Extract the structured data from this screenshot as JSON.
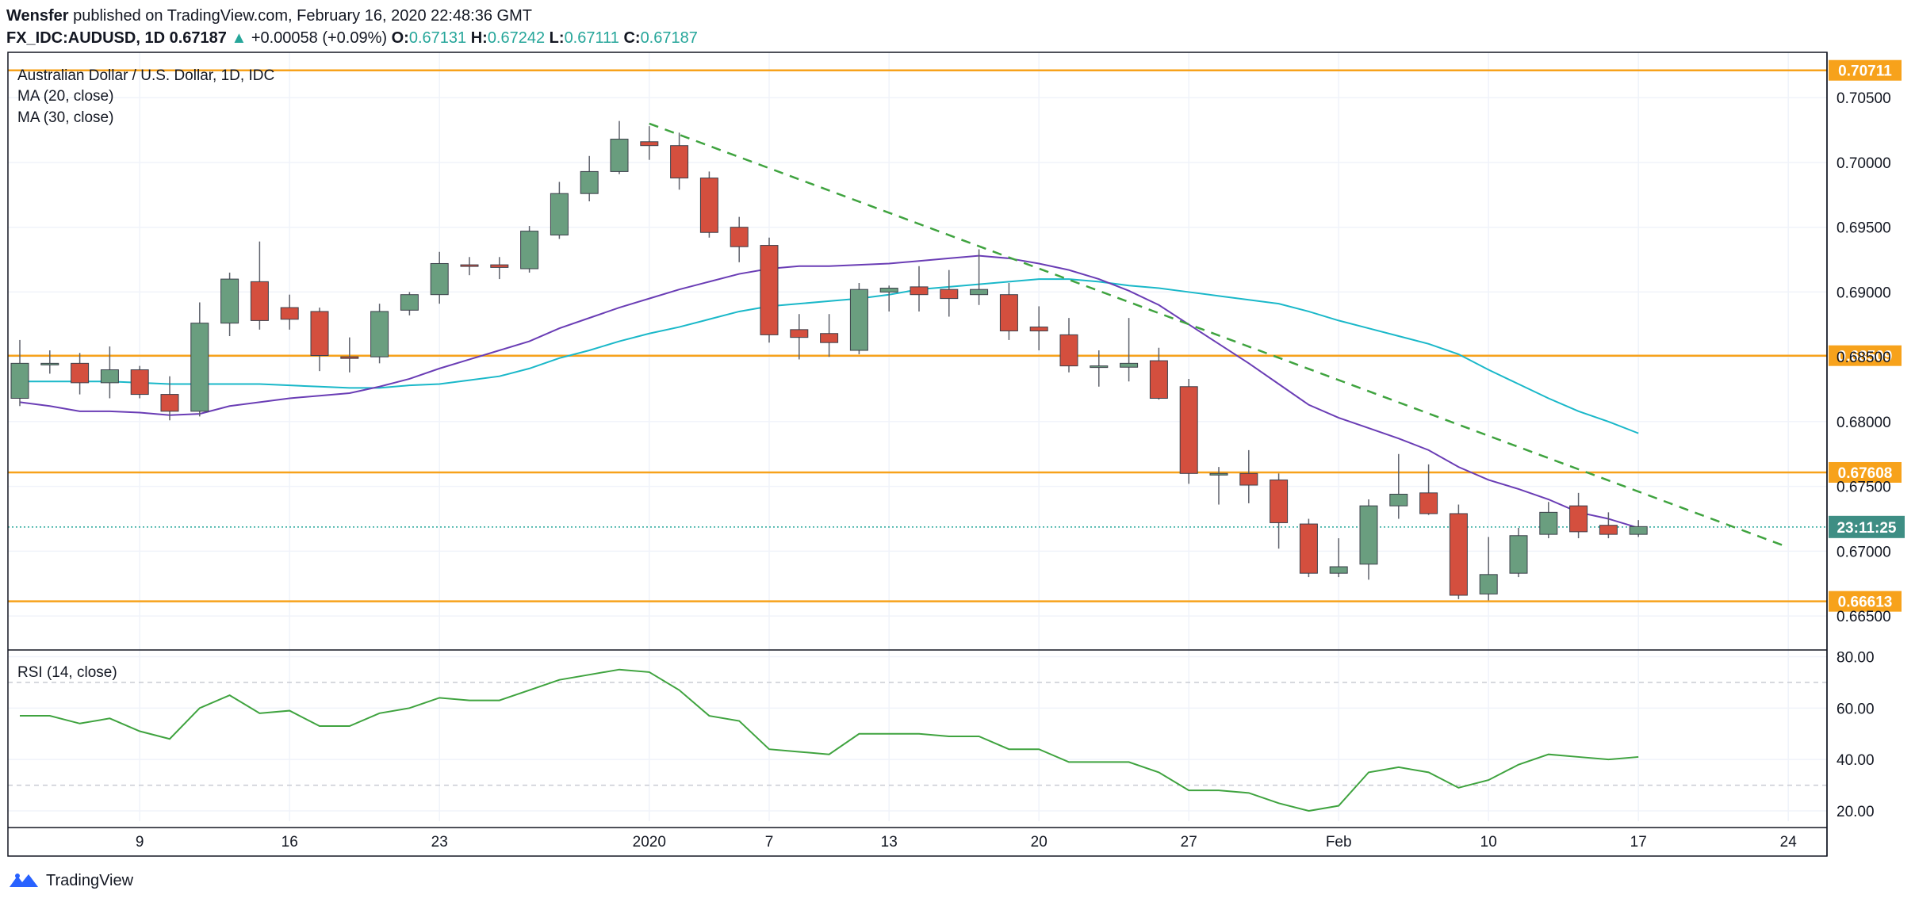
{
  "header": {
    "author": "Wensfer",
    "published_text": "published on TradingView.com, February 16, 2020 22:48:36 GMT",
    "symbol_interval": "FX_IDC:AUDUSD, 1D",
    "last": "0.67187",
    "change_arrow": "▲",
    "change": "+0.00058 (+0.09%)",
    "o_label": "O:",
    "o_value": "0.67131",
    "h_label": "H:",
    "h_value": "0.67242",
    "l_label": "L:",
    "l_value": "0.67111",
    "c_label": "C:",
    "c_value": "0.67187"
  },
  "legend": {
    "title": "Australian Dollar / U.S. Dollar, 1D, IDC",
    "ma20": "MA (20, close)",
    "ma30": "MA (30, close)",
    "rsi": "RSI (14, close)"
  },
  "footer": {
    "brand": "TradingView"
  },
  "colors": {
    "up": "#6a9e7f",
    "down": "#d44f3e",
    "ma20": "#6a3db5",
    "ma30": "#1ab8c9",
    "level": "#f7a21b",
    "trend": "#3fa33f",
    "rsi": "#3fa33f",
    "countdown_bg": "#3e8e84"
  },
  "chart_data": [
    {
      "type": "candlestick",
      "title": "Australian Dollar / U.S. Dollar, 1D, IDC",
      "x_tick_labels": [
        "9",
        "16",
        "23",
        "2020",
        "7",
        "13",
        "20",
        "27",
        "Feb",
        "10",
        "17",
        "24"
      ],
      "x_tick_indices": [
        4,
        9,
        14,
        21,
        25,
        29,
        34,
        39,
        44,
        49,
        54,
        59
      ],
      "y_range": [
        0.6625,
        0.7085
      ],
      "y_tick_labels": [
        "0.66500",
        "0.67000",
        "0.67500",
        "0.68000",
        "0.68500",
        "0.69000",
        "0.69500",
        "0.70000",
        "0.70500"
      ],
      "y_ticks": [
        0.665,
        0.67,
        0.675,
        0.68,
        0.685,
        0.69,
        0.695,
        0.7,
        0.705
      ],
      "ohlc": [
        [
          0.6818,
          0.6863,
          0.6812,
          0.6845
        ],
        [
          0.6845,
          0.6855,
          0.6837,
          0.6845
        ],
        [
          0.6845,
          0.6853,
          0.6821,
          0.683
        ],
        [
          0.683,
          0.6858,
          0.6818,
          0.684
        ],
        [
          0.684,
          0.6843,
          0.6818,
          0.6821
        ],
        [
          0.6821,
          0.6835,
          0.6801,
          0.6808
        ],
        [
          0.6808,
          0.6892,
          0.6804,
          0.6876
        ],
        [
          0.6876,
          0.6915,
          0.6866,
          0.691
        ],
        [
          0.6908,
          0.6939,
          0.6871,
          0.6878
        ],
        [
          0.6888,
          0.6898,
          0.6871,
          0.6879
        ],
        [
          0.6885,
          0.6888,
          0.6839,
          0.6851
        ],
        [
          0.685,
          0.6865,
          0.6838,
          0.6849
        ],
        [
          0.685,
          0.6891,
          0.6845,
          0.6885
        ],
        [
          0.6886,
          0.69,
          0.6882,
          0.6898
        ],
        [
          0.6898,
          0.6931,
          0.6891,
          0.6922
        ],
        [
          0.6921,
          0.6927,
          0.6913,
          0.692
        ],
        [
          0.6921,
          0.6927,
          0.691,
          0.6919
        ],
        [
          0.6918,
          0.6951,
          0.6915,
          0.6947
        ],
        [
          0.6944,
          0.6985,
          0.6941,
          0.6976
        ],
        [
          0.6976,
          0.7005,
          0.697,
          0.6993
        ],
        [
          0.6993,
          0.7032,
          0.6991,
          0.7018
        ],
        [
          0.7016,
          0.7028,
          0.7002,
          0.7013
        ],
        [
          0.7013,
          0.7023,
          0.6979,
          0.6988
        ],
        [
          0.6988,
          0.6993,
          0.6942,
          0.6946
        ],
        [
          0.695,
          0.6958,
          0.6923,
          0.6935
        ],
        [
          0.6936,
          0.6942,
          0.6861,
          0.6867
        ],
        [
          0.6871,
          0.6883,
          0.6848,
          0.6865
        ],
        [
          0.6868,
          0.6883,
          0.685,
          0.6861
        ],
        [
          0.6855,
          0.6907,
          0.6852,
          0.6902
        ],
        [
          0.69,
          0.6905,
          0.6885,
          0.6903
        ],
        [
          0.6904,
          0.692,
          0.6885,
          0.6898
        ],
        [
          0.6902,
          0.6917,
          0.6881,
          0.6895
        ],
        [
          0.6898,
          0.6933,
          0.689,
          0.6902
        ],
        [
          0.6898,
          0.6907,
          0.6863,
          0.687
        ],
        [
          0.6873,
          0.6889,
          0.6855,
          0.687
        ],
        [
          0.6867,
          0.688,
          0.6838,
          0.6843
        ],
        [
          0.6843,
          0.6855,
          0.6827,
          0.6843
        ],
        [
          0.6842,
          0.688,
          0.6831,
          0.6845
        ],
        [
          0.6847,
          0.6857,
          0.6817,
          0.6818
        ],
        [
          0.6827,
          0.6833,
          0.6752,
          0.676
        ],
        [
          0.676,
          0.6765,
          0.6736,
          0.676
        ],
        [
          0.676,
          0.6778,
          0.6737,
          0.6751
        ],
        [
          0.6755,
          0.676,
          0.6702,
          0.6722
        ],
        [
          0.6721,
          0.6725,
          0.668,
          0.6683
        ],
        [
          0.6683,
          0.671,
          0.668,
          0.6688
        ],
        [
          0.669,
          0.674,
          0.6678,
          0.6735
        ],
        [
          0.6735,
          0.6775,
          0.6725,
          0.6744
        ],
        [
          0.6745,
          0.6767,
          0.6728,
          0.6729
        ],
        [
          0.6729,
          0.6736,
          0.6663,
          0.6666
        ],
        [
          0.6667,
          0.6711,
          0.6662,
          0.6682
        ],
        [
          0.6683,
          0.6718,
          0.668,
          0.6712
        ],
        [
          0.6713,
          0.6738,
          0.671,
          0.673
        ],
        [
          0.6735,
          0.6745,
          0.671,
          0.6715
        ],
        [
          0.672,
          0.673,
          0.671,
          0.6713
        ],
        [
          0.6713,
          0.6724,
          0.6711,
          0.6719
        ]
      ],
      "ma20": [
        0.6815,
        0.6812,
        0.6808,
        0.6808,
        0.6807,
        0.6805,
        0.6806,
        0.6812,
        0.6815,
        0.6818,
        0.682,
        0.6822,
        0.6827,
        0.6833,
        0.6841,
        0.6848,
        0.6855,
        0.6862,
        0.6872,
        0.688,
        0.6888,
        0.6895,
        0.6902,
        0.6908,
        0.6914,
        0.6918,
        0.692,
        0.692,
        0.6921,
        0.6922,
        0.6924,
        0.6926,
        0.6928,
        0.6926,
        0.6922,
        0.6917,
        0.691,
        0.6901,
        0.689,
        0.6875,
        0.686,
        0.6845,
        0.6829,
        0.6813,
        0.6803,
        0.6795,
        0.6787,
        0.6778,
        0.6765,
        0.6755,
        0.6748,
        0.674,
        0.673,
        0.6725,
        0.6718
      ],
      "ma30": [
        0.6831,
        0.6831,
        0.6831,
        0.6831,
        0.683,
        0.6829,
        0.6829,
        0.6829,
        0.6829,
        0.6828,
        0.6827,
        0.6826,
        0.6826,
        0.6828,
        0.6829,
        0.6832,
        0.6835,
        0.6841,
        0.6849,
        0.6855,
        0.6862,
        0.6868,
        0.6873,
        0.6879,
        0.6885,
        0.6889,
        0.6891,
        0.6893,
        0.6895,
        0.6898,
        0.6902,
        0.6904,
        0.6906,
        0.6908,
        0.691,
        0.691,
        0.6908,
        0.6905,
        0.6903,
        0.69,
        0.6897,
        0.6894,
        0.6891,
        0.6885,
        0.6878,
        0.6872,
        0.6866,
        0.686,
        0.6852,
        0.684,
        0.6829,
        0.6818,
        0.6808,
        0.68,
        0.6791
      ],
      "ma30_days": 54,
      "levels": [
        {
          "value": 0.70711,
          "label": "0.70711"
        },
        {
          "value": 0.68509,
          "label": "0.68509"
        },
        {
          "value": 0.67608,
          "label": "0.67608"
        },
        {
          "value": 0.66613,
          "label": "0.66613"
        }
      ],
      "trendline": {
        "from": [
          21,
          0.703
        ],
        "to": [
          59,
          0.6703
        ]
      },
      "current_price": 0.67187,
      "countdown_label": "23:11:25"
    },
    {
      "type": "line",
      "title": "RSI (14, close)",
      "y_range": [
        16,
        82
      ],
      "y_tick_labels": [
        "20.00",
        "40.00",
        "60.00",
        "80.00"
      ],
      "y_ticks": [
        20,
        40,
        60,
        80
      ],
      "bands": [
        30,
        70
      ],
      "values": [
        57,
        57,
        54,
        56,
        51,
        48,
        60,
        65,
        58,
        59,
        53,
        53,
        58,
        60,
        64,
        63,
        63,
        67,
        71,
        73,
        75,
        74,
        67,
        57,
        55,
        44,
        43,
        42,
        50,
        50,
        50,
        49,
        49,
        44,
        44,
        39,
        39,
        39,
        35,
        28,
        28,
        27,
        23,
        20,
        22,
        35,
        37,
        35,
        29,
        32,
        38,
        42,
        41,
        40,
        41
      ]
    }
  ]
}
